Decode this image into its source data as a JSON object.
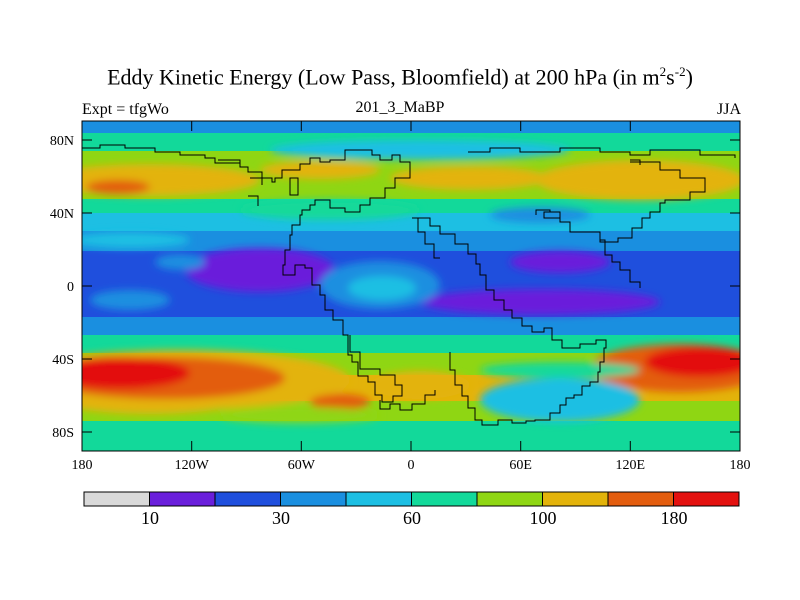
{
  "header": {
    "title_main": "Eddy Kinetic Energy (Low Pass, Bloomfield) at 200 hPa (in m",
    "title_sup1": "2",
    "title_mid": "s",
    "title_sup2": "-2",
    "title_end": ")",
    "left_string": "Expt = tfgWo",
    "center_string": "201_3_MaBP",
    "right_string": "JJA"
  },
  "map": {
    "lon_range": [
      -180,
      180
    ],
    "lat_range": [
      -90,
      90
    ],
    "lat_ticks": [
      "80N",
      "40N",
      "0",
      "40S",
      "80S"
    ],
    "lon_ticks": [
      "180",
      "120W",
      "60W",
      "0",
      "60E",
      "120E",
      "180"
    ]
  },
  "colorbar": {
    "colors": [
      "#d9d9d9",
      "#6a1fdb",
      "#1f4fdd",
      "#1a8fe0",
      "#1dbfe3",
      "#12d99a",
      "#8fd613",
      "#e3b30a",
      "#e35d0e",
      "#e3110f"
    ],
    "labels": [
      "10",
      "30",
      "60",
      "100",
      "180"
    ]
  }
}
